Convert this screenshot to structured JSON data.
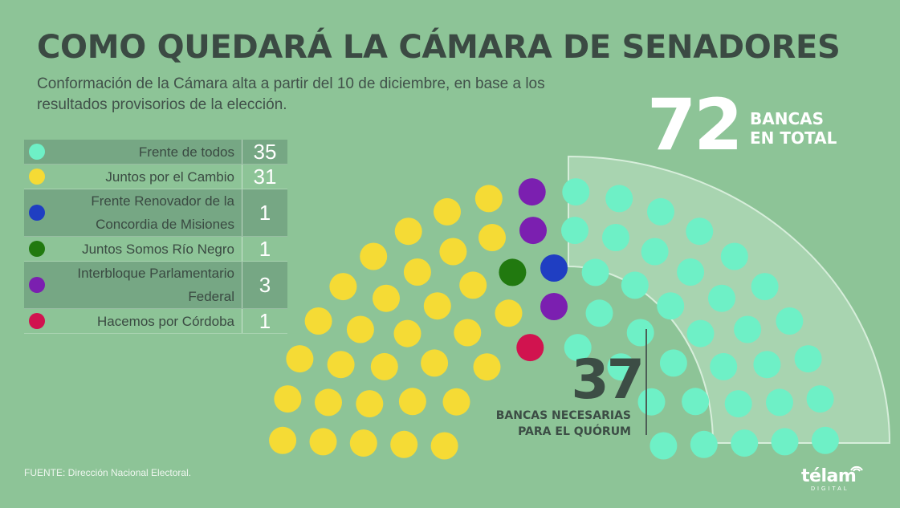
{
  "title": "COMO QUEDARÁ LA CÁMARA DE SENADORES",
  "subtitle": "Conformación de la Cámara alta a partir del 10 de diciembre, en base a los resultados provisorios de la elección.",
  "total": {
    "value": "72",
    "label": "BANCAS\nEN TOTAL"
  },
  "quorum": {
    "value": "37",
    "label": "BANCAS NECESARIAS\nPARA EL QUÓRUM"
  },
  "source": "FUENTE:  Dirección Nacional Electoral.",
  "logo": {
    "name": "télam",
    "sub": "DIGITAL"
  },
  "chart_data": {
    "type": "parliament",
    "total_seats": 72,
    "quorum_seats": 37,
    "series": [
      {
        "name": "Frente de todos",
        "value": 35,
        "color": "#6ef0c6"
      },
      {
        "name": "Juntos por el Cambio",
        "value": 31,
        "color": "#f5db35"
      },
      {
        "name": "Frente Renovador de la Concordia de Misiones",
        "value": 1,
        "color": "#1f3ec2"
      },
      {
        "name": "Juntos Somos Río Negro",
        "value": 1,
        "color": "#21790f"
      },
      {
        "name": "Interbloque Parlamentario Federal",
        "value": 3,
        "color": "#7b1fb0"
      },
      {
        "name": "Hacemos por Córdoba",
        "value": 1,
        "color": "#d1134f"
      }
    ]
  }
}
